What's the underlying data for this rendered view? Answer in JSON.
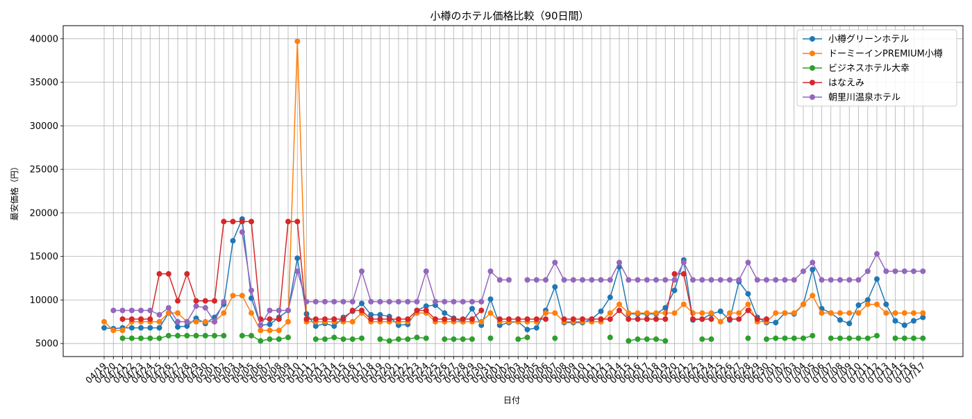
{
  "chart_data": {
    "type": "line",
    "title": "小樽のホテル価格比較（90日間）",
    "xlabel": "日付",
    "ylabel": "最安価格（円）",
    "ylim": [
      3500,
      41500
    ],
    "yticks": [
      5000,
      10000,
      15000,
      20000,
      25000,
      30000,
      35000,
      40000
    ],
    "grid": true,
    "legend_position": "top-right",
    "categories": [
      "04/19",
      "04/20",
      "04/21",
      "04/22",
      "04/23",
      "04/24",
      "04/25",
      "04/26",
      "04/27",
      "04/28",
      "04/29",
      "04/30",
      "05/01",
      "05/02",
      "05/03",
      "05/04",
      "05/05",
      "05/06",
      "05/07",
      "05/08",
      "05/09",
      "05/10",
      "05/11",
      "05/12",
      "05/13",
      "05/14",
      "05/15",
      "05/16",
      "05/17",
      "05/18",
      "05/19",
      "05/20",
      "05/21",
      "05/22",
      "05/23",
      "05/24",
      "05/25",
      "05/26",
      "05/27",
      "05/28",
      "05/29",
      "05/30",
      "05/31",
      "06/01",
      "06/02",
      "06/03",
      "06/04",
      "06/05",
      "06/06",
      "06/07",
      "06/08",
      "06/09",
      "06/10",
      "06/11",
      "06/12",
      "06/13",
      "06/14",
      "06/15",
      "06/16",
      "06/17",
      "06/18",
      "06/19",
      "06/20",
      "06/21",
      "06/22",
      "06/23",
      "06/24",
      "06/25",
      "06/26",
      "06/27",
      "06/28",
      "06/29",
      "06/30",
      "07/01",
      "07/02",
      "07/03",
      "07/04",
      "07/05",
      "07/06",
      "07/07",
      "07/08",
      "07/09",
      "07/10",
      "07/11",
      "07/12",
      "07/13",
      "07/14",
      "07/15",
      "07/16",
      "07/17"
    ],
    "series": [
      {
        "name": "小樽グリーンホテル",
        "color": "#1f77b4",
        "values": [
          6800,
          6700,
          6800,
          6800,
          6800,
          6800,
          6800,
          8500,
          6900,
          7000,
          7900,
          7300,
          8000,
          9500,
          16800,
          19300,
          10200,
          7100,
          7200,
          8000,
          8800,
          14800,
          8400,
          7000,
          7300,
          7000,
          8000,
          8700,
          9600,
          8300,
          8300,
          8100,
          7100,
          7200,
          8800,
          9300,
          9400,
          8500,
          7900,
          7500,
          9000,
          7100,
          10100,
          7100,
          7400,
          7500,
          6600,
          6800,
          8800,
          11500,
          7400,
          7400,
          7400,
          7800,
          8700,
          10300,
          13800,
          8400,
          8400,
          8400,
          8400,
          9100,
          11100,
          14600,
          7700,
          7800,
          8400,
          8700,
          7700,
          12100,
          10700,
          8000,
          7400,
          7400,
          8500,
          8400,
          9500,
          13500,
          9000,
          8500,
          7700,
          7300,
          9400,
          10000,
          12400,
          9500,
          7600,
          7100,
          7600,
          8000
        ]
      },
      {
        "name": "ドーミーインPREMIUM小樽",
        "color": "#ff7f0e",
        "values": [
          7500,
          6500,
          6500,
          7500,
          7500,
          7500,
          7500,
          8500,
          8500,
          7500,
          7500,
          7500,
          7500,
          8500,
          10500,
          10500,
          8500,
          6500,
          6500,
          6500,
          7500,
          39700,
          7500,
          7500,
          7500,
          7500,
          7500,
          7500,
          8500,
          7500,
          7500,
          7500,
          7500,
          7500,
          8500,
          8500,
          7500,
          7500,
          7500,
          7500,
          7500,
          7500,
          8500,
          7500,
          7500,
          7500,
          7500,
          7500,
          8500,
          8500,
          7500,
          7500,
          7500,
          7500,
          7500,
          8500,
          9500,
          8500,
          8500,
          8500,
          8500,
          8500,
          8500,
          9500,
          8500,
          8500,
          8500,
          7500,
          8500,
          8500,
          9500,
          7500,
          7500,
          8500,
          8500,
          8500,
          9500,
          10500,
          8500,
          8500,
          8500,
          8500,
          8500,
          9500,
          9500,
          8500,
          8500,
          8500,
          8500,
          8500
        ]
      },
      {
        "name": "ビジネスホテル大幸",
        "color": "#2ca02c",
        "values": [
          null,
          null,
          5600,
          5600,
          5600,
          5600,
          5600,
          5900,
          5900,
          5900,
          5900,
          5900,
          5900,
          5900,
          null,
          5900,
          5900,
          5300,
          5500,
          5500,
          5700,
          null,
          null,
          5500,
          5500,
          5700,
          5500,
          5500,
          5600,
          null,
          5500,
          5300,
          5500,
          5500,
          5700,
          5600,
          null,
          5500,
          5500,
          5500,
          5500,
          null,
          5600,
          null,
          null,
          5500,
          5700,
          null,
          null,
          5600,
          null,
          null,
          null,
          null,
          null,
          5700,
          null,
          5300,
          5500,
          5500,
          5500,
          5300,
          null,
          null,
          null,
          5500,
          5500,
          null,
          null,
          null,
          5600,
          null,
          5500,
          5600,
          5600,
          5600,
          5600,
          5900,
          null,
          5600,
          5600,
          5600,
          5600,
          5600,
          5900,
          null,
          5600,
          5600,
          5600,
          5600
        ]
      },
      {
        "name": "はなえみ",
        "color": "#d62728",
        "values": [
          null,
          null,
          7800,
          7800,
          7800,
          7800,
          13000,
          13000,
          9900,
          13000,
          9900,
          9900,
          9900,
          19000,
          19000,
          19000,
          19000,
          7800,
          7800,
          7800,
          19000,
          19000,
          7800,
          7800,
          7800,
          7800,
          7800,
          8800,
          8800,
          7800,
          7800,
          7800,
          7800,
          7800,
          8800,
          8800,
          7800,
          7800,
          7800,
          7800,
          7800,
          8800,
          null,
          7800,
          7800,
          7800,
          7800,
          7800,
          7800,
          null,
          7800,
          7800,
          7800,
          7800,
          7800,
          7800,
          8800,
          7800,
          7800,
          7800,
          7800,
          7800,
          13000,
          13000,
          7800,
          7800,
          7800,
          null,
          7800,
          7800,
          8800,
          7800,
          7800,
          null,
          null,
          null,
          null,
          null,
          null,
          null,
          null,
          null,
          null,
          null,
          null,
          null,
          null,
          null,
          null,
          null
        ]
      },
      {
        "name": "朝里川温泉ホテル",
        "color": "#9467bd",
        "values": [
          null,
          8800,
          8800,
          8800,
          8800,
          8800,
          8300,
          9100,
          7500,
          7500,
          9300,
          9100,
          7500,
          9800,
          null,
          17800,
          11100,
          7100,
          8800,
          8800,
          8800,
          13300,
          9800,
          9800,
          9800,
          9800,
          9800,
          9800,
          13300,
          9800,
          9800,
          9800,
          9800,
          9800,
          9800,
          13300,
          9800,
          9800,
          9800,
          9800,
          9800,
          9800,
          13300,
          12300,
          12300,
          null,
          12300,
          12300,
          12300,
          14300,
          12300,
          12300,
          12300,
          12300,
          12300,
          12300,
          14300,
          12300,
          12300,
          12300,
          12300,
          12300,
          12300,
          14300,
          12300,
          12300,
          12300,
          12300,
          12300,
          12300,
          14300,
          12300,
          12300,
          12300,
          12300,
          12300,
          13300,
          14300,
          12300,
          12300,
          12300,
          12300,
          12300,
          13300,
          15300,
          13300,
          13300,
          13300,
          13300,
          13300
        ]
      }
    ]
  }
}
